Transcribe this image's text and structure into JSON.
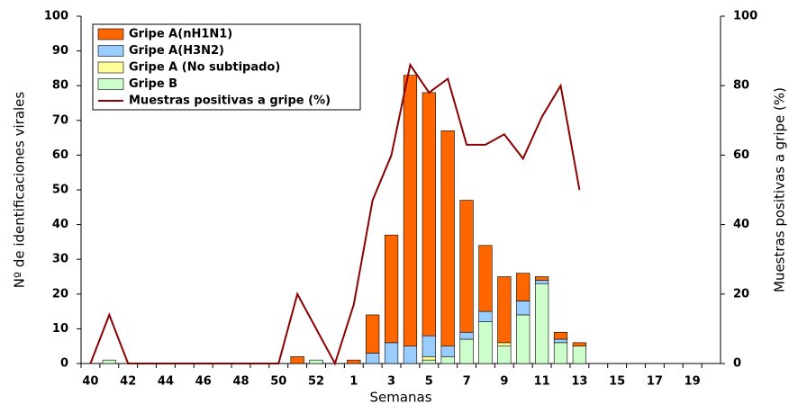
{
  "chart_data": {
    "type": "bar",
    "x_label": "Semanas",
    "y_label": "Nº de identificaciones virales",
    "y2_label": "Muestras positivas a gripe (%)",
    "categories": [
      40,
      null,
      42,
      null,
      44,
      null,
      46,
      null,
      48,
      null,
      50,
      null,
      52,
      null,
      1,
      null,
      3,
      null,
      5,
      null,
      7,
      null,
      9,
      null,
      11,
      null,
      13,
      null,
      15,
      null,
      17,
      null,
      19,
      null
    ],
    "series": [
      {
        "name": "Gripe A(nH1N1)",
        "color": "#ff6600",
        "values": [
          null,
          null,
          null,
          null,
          null,
          null,
          null,
          null,
          null,
          null,
          null,
          2,
          null,
          null,
          1,
          11,
          31,
          78,
          70,
          62,
          38,
          19,
          19,
          8,
          1,
          2,
          1,
          null,
          null,
          null,
          null,
          null,
          null,
          null
        ]
      },
      {
        "name": "Gripe A(H3N2)",
        "color": "#99ccff",
        "values": [
          null,
          null,
          null,
          null,
          null,
          null,
          null,
          null,
          null,
          null,
          null,
          null,
          null,
          null,
          null,
          3,
          6,
          5,
          6,
          3,
          2,
          3,
          null,
          4,
          1,
          1,
          null,
          null,
          null,
          null,
          null,
          null,
          null,
          null
        ]
      },
      {
        "name": "Gripe A (No subtipado)",
        "color": "#ffff99",
        "values": [
          null,
          null,
          null,
          null,
          null,
          null,
          null,
          null,
          null,
          null,
          null,
          null,
          null,
          null,
          null,
          null,
          null,
          null,
          1,
          null,
          null,
          null,
          1,
          null,
          null,
          null,
          null,
          null,
          null,
          null,
          null,
          null,
          null,
          null
        ]
      },
      {
        "name": "Gripe B",
        "color": "#ccffcc",
        "values": [
          null,
          1,
          null,
          null,
          null,
          null,
          null,
          null,
          null,
          null,
          null,
          null,
          1,
          null,
          null,
          null,
          null,
          null,
          1,
          2,
          7,
          12,
          5,
          14,
          23,
          6,
          5,
          null,
          null,
          null,
          null,
          null,
          null,
          null
        ]
      },
      {
        "name": "Muestras positivas a gripe (%)",
        "color": "#8b0000",
        "type": "line",
        "axis": "y2",
        "values": [
          0,
          14,
          0,
          0,
          0,
          0,
          0,
          0,
          0,
          0,
          0,
          20,
          10,
          0,
          17,
          47,
          60,
          86,
          78,
          82,
          63,
          63,
          66,
          59,
          71,
          80,
          50,
          null,
          null,
          null,
          null,
          null,
          null,
          null
        ]
      }
    ],
    "ylim": [
      0,
      100
    ],
    "yticks": [
      0,
      10,
      20,
      30,
      40,
      50,
      60,
      70,
      80,
      90,
      100
    ],
    "y2lim": [
      0,
      100
    ],
    "y2ticks": [
      0,
      20,
      40,
      60,
      80,
      100
    ],
    "legend": "top-left"
  }
}
